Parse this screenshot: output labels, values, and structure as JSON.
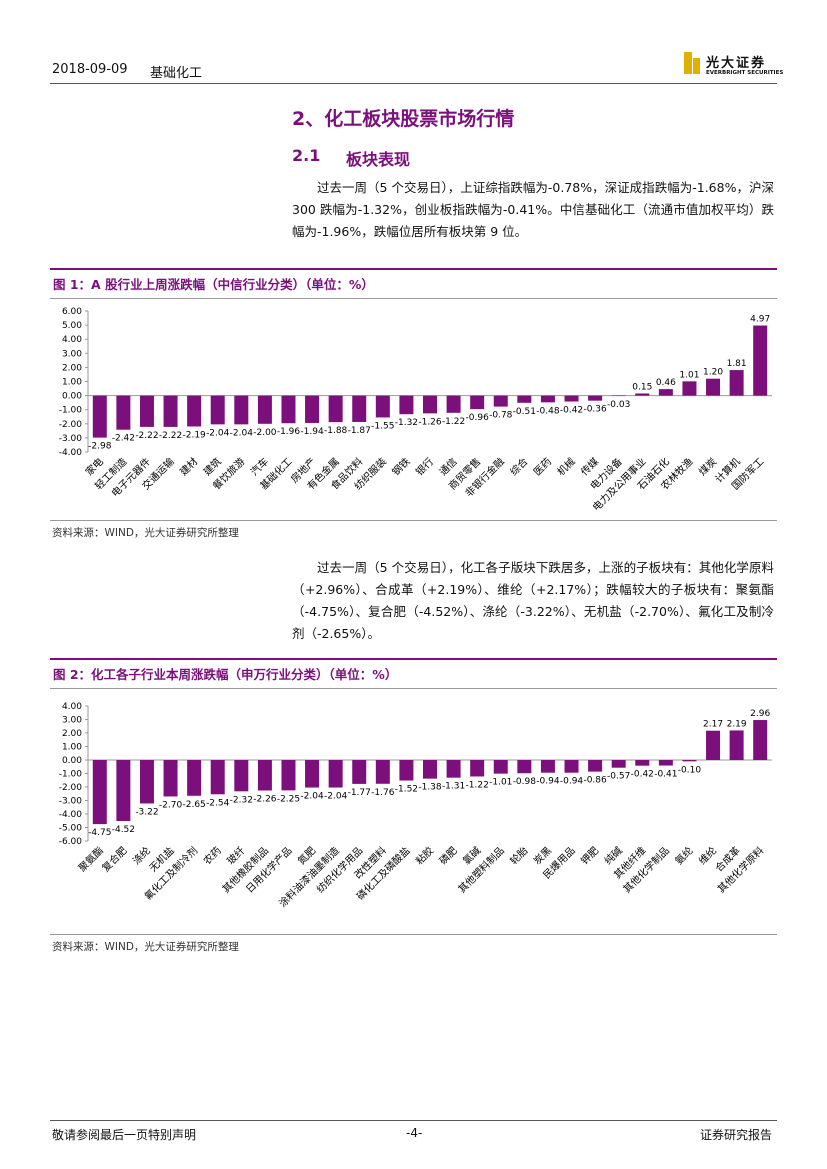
{
  "header": {
    "date": "2018-09-09",
    "section": "基础化工",
    "logo": {
      "name": "光大证券",
      "english": "EVERBRIGHT SECURITIES"
    }
  },
  "heading": "2、化工板块股票市场行情",
  "subsection": {
    "number": "2.1",
    "title": "板块表现"
  },
  "paragraphs": [
    "过去一周（5 个交易日），上证综指跌幅为-0.78%，深证成指跌幅为-1.68%，沪深 300 跌幅为-1.32%，创业板指跌幅为-0.41%。中信基础化工（流通市值加权平均）跌幅为-1.96%，跌幅位居所有板块第 9 位。",
    "过去一周（5 个交易日），化工各子版块下跌居多，上涨的子板块有：其他化学原料（+2.96%）、合成革（+2.19%）、维纶（+2.17%）；跌幅较大的子板块有：聚氨酯（-4.75%）、复合肥（-4.52%）、涤纶（-3.22%）、无机盐（-2.70%）、氟化工及制冷剂（-2.65%）。"
  ],
  "chart_data": [
    {
      "type": "bar",
      "title": "图 1：A 股行业上周涨跌幅（中信行业分类）（单位：%）",
      "source": "资料来源：WIND，光大证券研究所整理",
      "color": "#7b0f7b",
      "categories": [
        "家电",
        "轻工制造",
        "电子元器件",
        "交通运输",
        "建材",
        "建筑",
        "餐饮旅游",
        "汽车",
        "基础化工",
        "房地产",
        "有色金属",
        "食品饮料",
        "纺织服装",
        "钢铁",
        "银行",
        "通信",
        "商贸零售",
        "非银行金融",
        "综合",
        "医药",
        "机械",
        "传媒",
        "电力设备",
        "电力及公用事业",
        "石油石化",
        "农林牧渔",
        "煤炭",
        "计算机",
        "国防军工"
      ],
      "values": [
        -2.98,
        -2.42,
        -2.22,
        -2.22,
        -2.19,
        -2.04,
        -2.04,
        -2.0,
        -1.96,
        -1.94,
        -1.88,
        -1.87,
        -1.55,
        -1.32,
        -1.26,
        -1.22,
        -0.96,
        -0.78,
        -0.51,
        -0.48,
        -0.42,
        -0.36,
        -0.03,
        0.15,
        0.46,
        1.01,
        1.2,
        1.81,
        4.97
      ],
      "value_labels": [
        "-2.98",
        "-2.42",
        "-2.22",
        "-2.22",
        "-2.19",
        "-2.04",
        "-2.04",
        "-2.00",
        "-1.96",
        "-1.94",
        "-1.88",
        "-1.87",
        "-1.55",
        "-1.32",
        "-1.26",
        "-1.22",
        "-0.96",
        "-0.78",
        "-0.51",
        "-0.48",
        "-0.42",
        "-0.36",
        "-0.03",
        "0.15",
        "0.46",
        "1.01",
        "1.20",
        "1.81",
        "4.97"
      ],
      "ylim": [
        -4,
        6
      ],
      "yticks": [
        {
          "value": 6,
          "label": "6.00"
        },
        {
          "value": 5,
          "label": "5.00"
        },
        {
          "value": 4,
          "label": "4.00"
        },
        {
          "value": 3,
          "label": "3.00"
        },
        {
          "value": 2,
          "label": "2.00"
        },
        {
          "value": 1,
          "label": "1.00"
        },
        {
          "value": 0,
          "label": "0.00"
        },
        {
          "value": -1,
          "label": "-1.00"
        },
        {
          "value": -2,
          "label": "-2.00"
        },
        {
          "value": -3,
          "label": "-3.00"
        },
        {
          "value": -4,
          "label": "-4.00"
        }
      ],
      "grid": false
    },
    {
      "type": "bar",
      "title": "图 2：化工各子行业本周涨跌幅（申万行业分类）（单位：%）",
      "source": "资料来源：WIND，光大证券研究所整理",
      "color": "#7b0f7b",
      "categories": [
        "聚氨酯",
        "复合肥",
        "涤纶",
        "无机盐",
        "氟化工及制冷剂",
        "农药",
        "玻纤",
        "其他橡胶制品",
        "日用化学产品",
        "氮肥",
        "涂料油漆油墨制造",
        "纺织化学用品",
        "改性塑料",
        "磷化工及磷酸盐",
        "粘胶",
        "磷肥",
        "氯碱",
        "其他塑料制品",
        "轮胎",
        "炭黑",
        "民爆用品",
        "钾肥",
        "纯碱",
        "其他纤维",
        "其他化学制品",
        "氨纶",
        "维纶",
        "合成革",
        "其他化学原料"
      ],
      "values": [
        -4.75,
        -4.52,
        -3.22,
        -2.7,
        -2.65,
        -2.54,
        -2.32,
        -2.26,
        -2.25,
        -2.04,
        -2.04,
        -1.77,
        -1.76,
        -1.52,
        -1.38,
        -1.31,
        -1.22,
        -1.01,
        -0.98,
        -0.94,
        -0.94,
        -0.86,
        -0.57,
        -0.42,
        -0.41,
        -0.1,
        2.17,
        2.19,
        2.96
      ],
      "value_labels": [
        "-4.75",
        "-4.52",
        "-3.22",
        "-2.70",
        "-2.65",
        "-2.54",
        "-2.32",
        "-2.26",
        "-2.25",
        "-2.04",
        "-2.04",
        "-1.77",
        "-1.76",
        "-1.52",
        "-1.38",
        "-1.31",
        "-1.22",
        "-1.01",
        "-0.98",
        "-0.94",
        "-0.94",
        "-0.86",
        "-0.57",
        "-0.42",
        "-0.41",
        "-0.10",
        "2.17",
        "2.19",
        "2.96"
      ],
      "ylim": [
        -6,
        4
      ],
      "yticks": [
        {
          "value": 4,
          "label": "4.00"
        },
        {
          "value": 3,
          "label": "3.00"
        },
        {
          "value": 2,
          "label": "2.00"
        },
        {
          "value": 1,
          "label": "1.00"
        },
        {
          "value": 0,
          "label": "0.00"
        },
        {
          "value": -1,
          "label": "-1.00"
        },
        {
          "value": -2,
          "label": "-2.00"
        },
        {
          "value": -3,
          "label": "-3.00"
        },
        {
          "value": -4,
          "label": "-4.00"
        },
        {
          "value": -5,
          "label": "-5.00"
        },
        {
          "value": -6,
          "label": "-6.00"
        }
      ],
      "grid": false
    }
  ],
  "footer": {
    "disclaimer": "敬请参阅最后一页特别声明",
    "page": "-4-",
    "type": "证券研究报告"
  }
}
